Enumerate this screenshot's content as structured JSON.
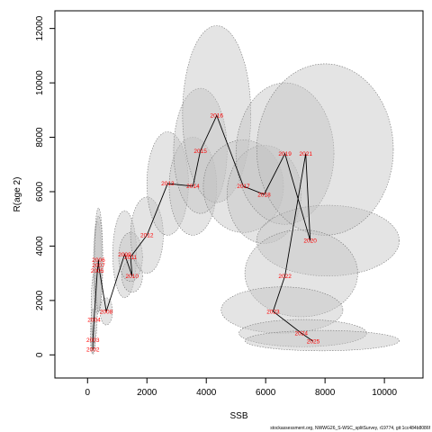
{
  "chart_data": {
    "type": "scatter",
    "title": "",
    "xlabel": "SSB",
    "ylabel": "R(age 2)",
    "xlim": [
      -1100,
      11300
    ],
    "ylim": [
      -850,
      12650
    ],
    "xticks": [
      0,
      2000,
      4000,
      6000,
      8000,
      10000
    ],
    "yticks": [
      0,
      2000,
      4000,
      6000,
      8000,
      10000,
      12000
    ],
    "grid": false,
    "legend": "none",
    "colors": {
      "ellipse_fill": "#c4c4c4",
      "ellipse_stroke": "#777777",
      "path": "#000000",
      "label": "#ff0000"
    },
    "points": [
      {
        "year": "2002",
        "ssb": 180,
        "rec": 200,
        "ssb_lo": 100,
        "ssb_hi": 260,
        "rec_lo": 20,
        "rec_hi": 1100
      },
      {
        "year": "2003",
        "ssb": 180,
        "rec": 550,
        "ssb_lo": 100,
        "ssb_hi": 260,
        "rec_lo": 80,
        "rec_hi": 1700
      },
      {
        "year": "2004",
        "ssb": 220,
        "rec": 1300,
        "ssb_lo": 120,
        "ssb_hi": 330,
        "rec_lo": 450,
        "rec_hi": 3000
      },
      {
        "year": "2005",
        "ssb": 330,
        "rec": 3100,
        "ssb_lo": 200,
        "ssb_hi": 470,
        "rec_lo": 1500,
        "rec_hi": 4900
      },
      {
        "year": "2006",
        "ssb": 370,
        "rec": 3500,
        "ssb_lo": 230,
        "ssb_hi": 510,
        "rec_lo": 1700,
        "rec_hi": 5400
      },
      {
        "year": "2007",
        "ssb": 370,
        "rec": 3300,
        "ssb_lo": 230,
        "ssb_hi": 510,
        "rec_lo": 1600,
        "rec_hi": 5100
      },
      {
        "year": "2008",
        "ssb": 630,
        "rec": 1600,
        "ssb_lo": 420,
        "ssb_hi": 840,
        "rec_lo": 1100,
        "rec_hi": 2100
      },
      {
        "year": "2009",
        "ssb": 1250,
        "rec": 3700,
        "ssb_lo": 850,
        "ssb_hi": 1650,
        "rec_lo": 2100,
        "rec_hi": 5300
      },
      {
        "year": "2010",
        "ssb": 1500,
        "rec": 2900,
        "ssb_lo": 1150,
        "ssb_hi": 1850,
        "rec_lo": 2300,
        "rec_hi": 3500
      },
      {
        "year": "2011",
        "ssb": 1450,
        "rec": 3600,
        "ssb_lo": 1050,
        "ssb_hi": 1850,
        "rec_lo": 2700,
        "rec_hi": 4500
      },
      {
        "year": "2012",
        "ssb": 2000,
        "rec": 4400,
        "ssb_lo": 1450,
        "ssb_hi": 2550,
        "rec_lo": 3000,
        "rec_hi": 5800
      },
      {
        "year": "2013",
        "ssb": 2700,
        "rec": 6300,
        "ssb_lo": 2000,
        "ssb_hi": 3400,
        "rec_lo": 4400,
        "rec_hi": 8200
      },
      {
        "year": "2014",
        "ssb": 3550,
        "rec": 6200,
        "ssb_lo": 2750,
        "ssb_hi": 4350,
        "rec_lo": 4400,
        "rec_hi": 8000
      },
      {
        "year": "2015",
        "ssb": 3800,
        "rec": 7500,
        "ssb_lo": 2900,
        "ssb_hi": 4700,
        "rec_lo": 5200,
        "rec_hi": 9800
      },
      {
        "year": "2016",
        "ssb": 4350,
        "rec": 8800,
        "ssb_lo": 3200,
        "ssb_hi": 5500,
        "rec_lo": 5600,
        "rec_hi": 12100
      },
      {
        "year": "2017",
        "ssb": 5250,
        "rec": 6200,
        "ssb_lo": 3900,
        "ssb_hi": 6600,
        "rec_lo": 4500,
        "rec_hi": 7900
      },
      {
        "year": "2018",
        "ssb": 5950,
        "rec": 5900,
        "ssb_lo": 4700,
        "ssb_hi": 7200,
        "rec_lo": 4100,
        "rec_hi": 7700
      },
      {
        "year": "2019",
        "ssb": 6650,
        "rec": 7400,
        "ssb_lo": 5000,
        "ssb_hi": 8300,
        "rec_lo": 4800,
        "rec_hi": 10000
      },
      {
        "year": "2020",
        "ssb": 7500,
        "rec": 4200,
        "ssb_lo": 5700,
        "ssb_hi": 10500,
        "rec_lo": 2900,
        "rec_hi": 5500
      },
      {
        "year": "2021",
        "ssb": 7350,
        "rec": 7400,
        "ssb_lo": 5700,
        "ssb_hi": 10300,
        "rec_lo": 4400,
        "rec_hi": 10700
      },
      {
        "year": "2022",
        "ssb": 6650,
        "rec": 2900,
        "ssb_lo": 5300,
        "ssb_hi": 9100,
        "rec_lo": 1400,
        "rec_hi": 4600
      },
      {
        "year": "2023",
        "ssb": 6250,
        "rec": 1600,
        "ssb_lo": 4500,
        "ssb_hi": 8600,
        "rec_lo": 800,
        "rec_hi": 2500
      },
      {
        "year": "2024",
        "ssb": 7200,
        "rec": 800,
        "ssb_lo": 5100,
        "ssb_hi": 9400,
        "rec_lo": 300,
        "rec_hi": 1300
      },
      {
        "year": "2025",
        "ssb": 7600,
        "rec": 500,
        "ssb_lo": 5300,
        "ssb_hi": 10500,
        "rec_lo": 150,
        "rec_hi": 900
      }
    ]
  },
  "footer": "stockassessment.org, NWWG26_S-WSC_splitSurvey, r19774, git:1cc484b8086f"
}
